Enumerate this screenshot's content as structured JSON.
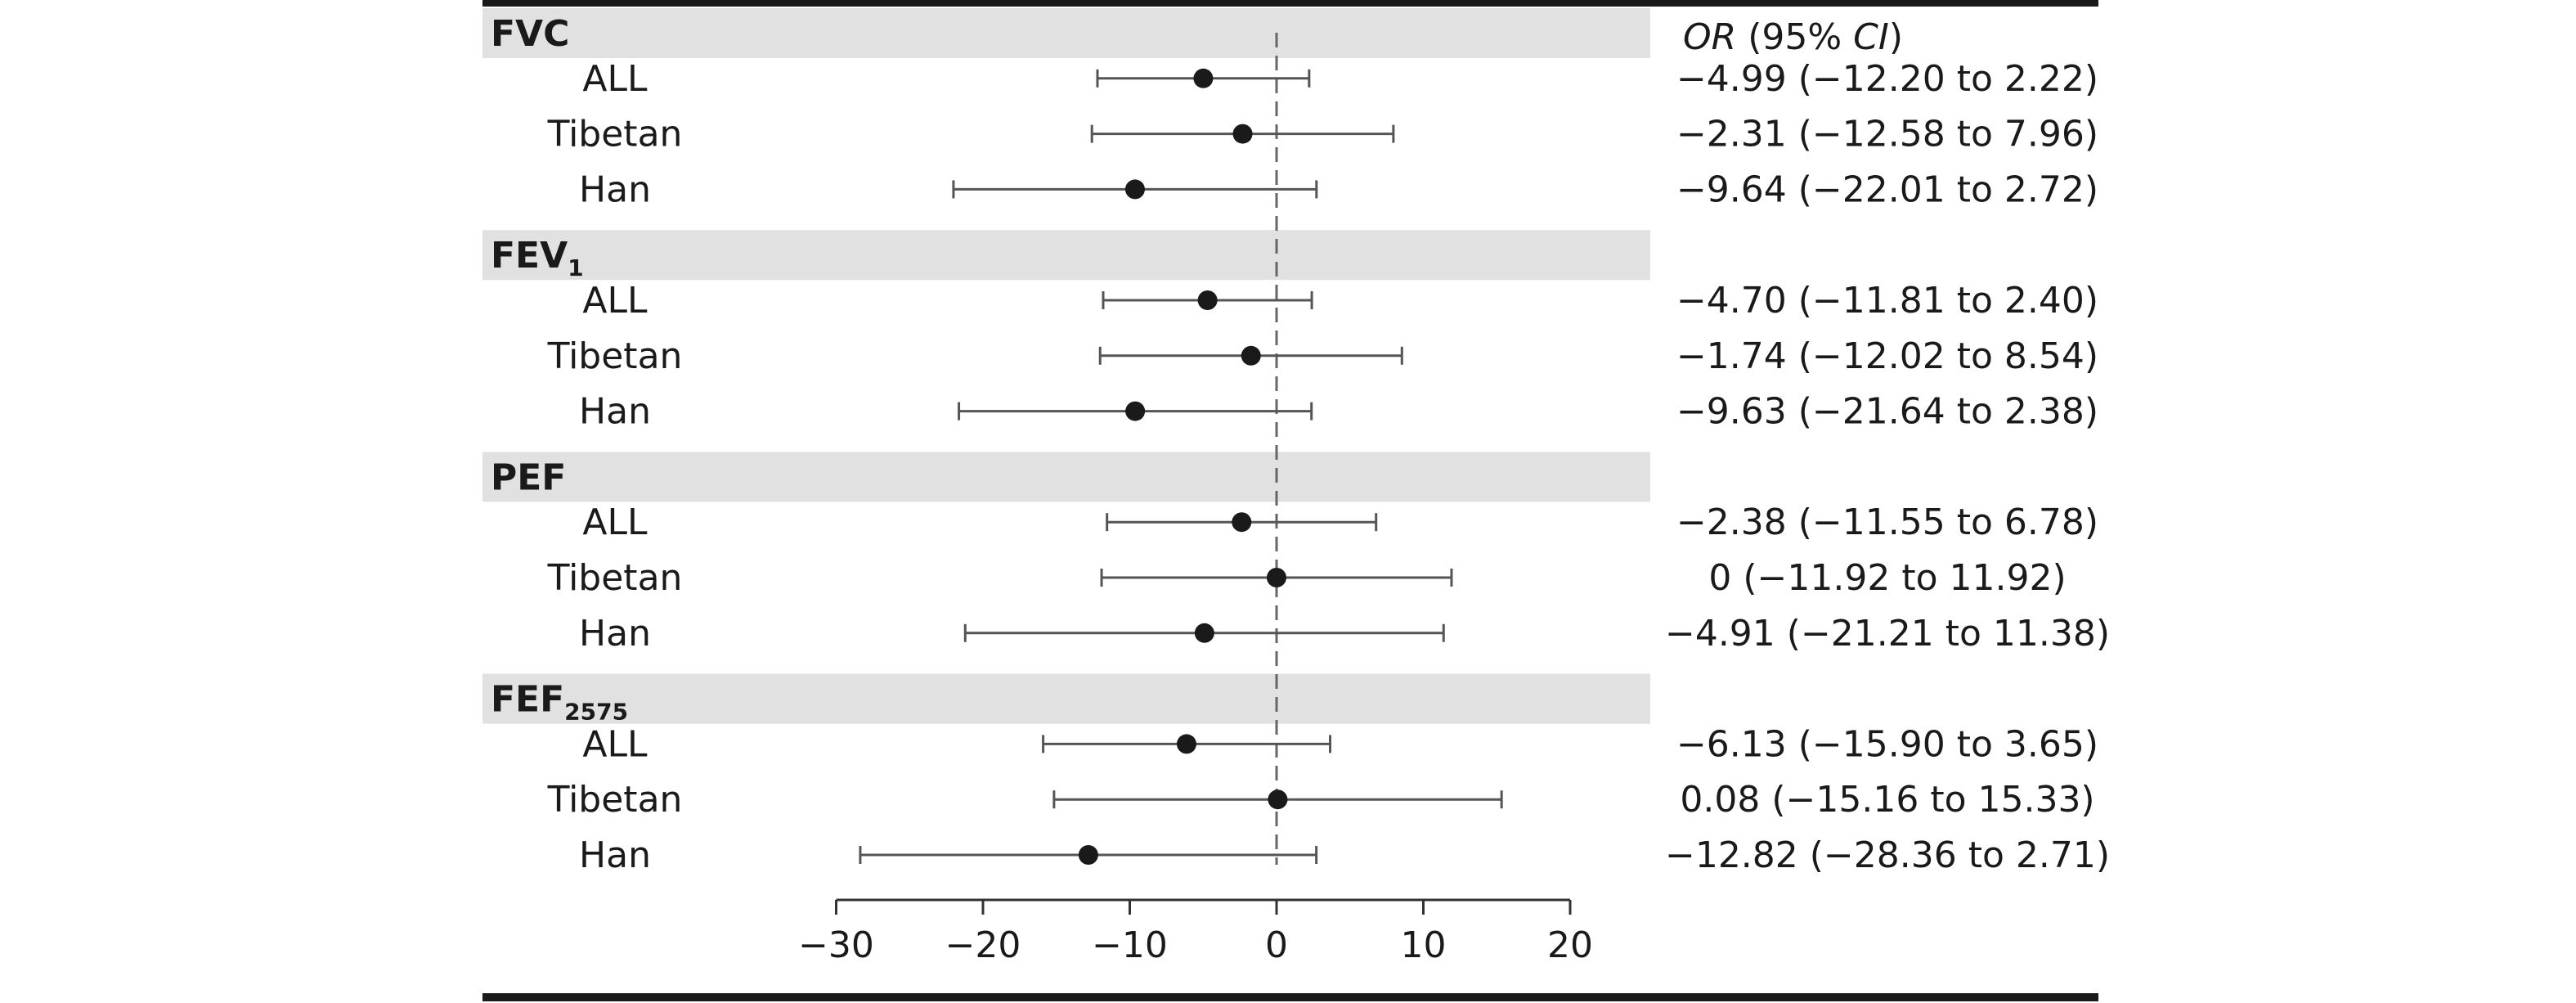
{
  "chart_data": {
    "type": "forest",
    "header": {
      "italic": "OR",
      "rest": " (95% ",
      "italic2": "CI",
      "close": ")"
    },
    "reference_line": 0,
    "xlim": [
      -30,
      20
    ],
    "xticks": [
      -30,
      -20,
      -10,
      0,
      10,
      20
    ],
    "xtick_labels": [
      "−30",
      "−20",
      "−10",
      "0",
      "10",
      "20"
    ],
    "groups": [
      {
        "name": "FVC",
        "sub": "",
        "rows": [
          {
            "label": "ALL",
            "est": -4.99,
            "lo": -12.2,
            "hi": 2.22,
            "text": "−4.99 (−12.20 to 2.22)"
          },
          {
            "label": "Tibetan",
            "est": -2.31,
            "lo": -12.58,
            "hi": 7.96,
            "text": "−2.31 (−12.58 to 7.96)"
          },
          {
            "label": "Han",
            "est": -9.64,
            "lo": -22.01,
            "hi": 2.72,
            "text": "−9.64 (−22.01 to 2.72)"
          }
        ]
      },
      {
        "name": "FEV",
        "sub": "1",
        "rows": [
          {
            "label": "ALL",
            "est": -4.7,
            "lo": -11.81,
            "hi": 2.4,
            "text": "−4.70 (−11.81 to 2.40)"
          },
          {
            "label": "Tibetan",
            "est": -1.74,
            "lo": -12.02,
            "hi": 8.54,
            "text": "−1.74 (−12.02 to 8.54)"
          },
          {
            "label": "Han",
            "est": -9.63,
            "lo": -21.64,
            "hi": 2.38,
            "text": "−9.63 (−21.64 to 2.38)"
          }
        ]
      },
      {
        "name": "PEF",
        "sub": "",
        "rows": [
          {
            "label": "ALL",
            "est": -2.38,
            "lo": -11.55,
            "hi": 6.78,
            "text": "−2.38 (−11.55 to 6.78)"
          },
          {
            "label": "Tibetan",
            "est": 0,
            "lo": -11.92,
            "hi": 11.92,
            "text": "0 (−11.92 to 11.92)"
          },
          {
            "label": "Han",
            "est": -4.91,
            "lo": -21.21,
            "hi": 11.38,
            "text": "−4.91 (−21.21 to 11.38)"
          }
        ]
      },
      {
        "name": "FEF",
        "sub": "2575",
        "rows": [
          {
            "label": "ALL",
            "est": -6.13,
            "lo": -15.9,
            "hi": 3.65,
            "text": "−6.13 (−15.90 to 3.65)"
          },
          {
            "label": "Tibetan",
            "est": 0.08,
            "lo": -15.16,
            "hi": 15.33,
            "text": "0.08 (−15.16 to 15.33)"
          },
          {
            "label": "Han",
            "est": -12.82,
            "lo": -28.36,
            "hi": 2.71,
            "text": "−12.82 (−28.36 to 2.71)"
          }
        ]
      }
    ],
    "colors": {
      "band": "#e1e1e1",
      "rule": "#1a1a1a",
      "ci": "#555555",
      "point": "#1a1a1a",
      "refline": "#666666"
    }
  }
}
